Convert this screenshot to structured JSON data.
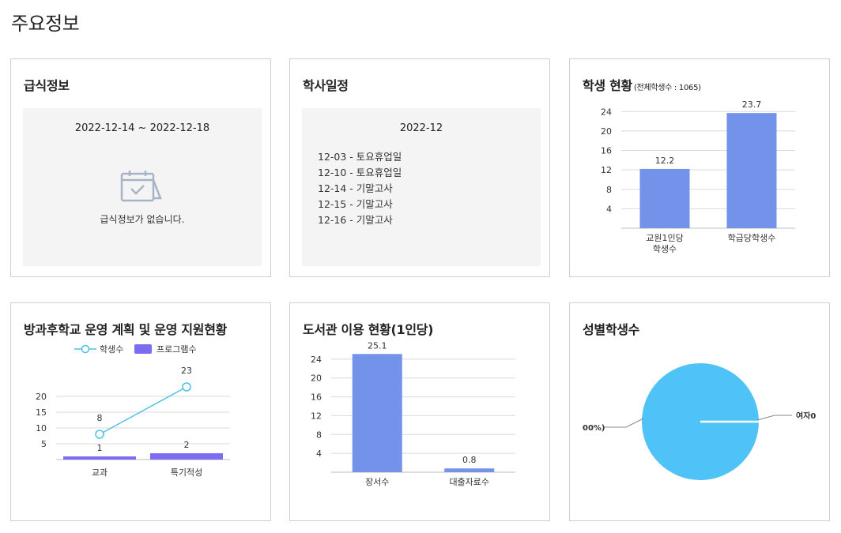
{
  "page_title": "주요정보",
  "meal": {
    "title": "급식정보",
    "date_range": "2022-12-14 ~ 2022-12-18",
    "empty_message": "급식정보가 없습니다."
  },
  "schedule": {
    "title": "학사일정",
    "month": "2022-12",
    "items": [
      {
        "date": "12-03",
        "event": "토요휴업일"
      },
      {
        "date": "12-10",
        "event": "토요휴업일"
      },
      {
        "date": "12-14",
        "event": "기말고사"
      },
      {
        "date": "12-15",
        "event": "기말고사"
      },
      {
        "date": "12-16",
        "event": "기말고사"
      }
    ]
  },
  "student_status": {
    "title": "학생 현황",
    "subtitle": "(전체학생수 : 1065)"
  },
  "afterschool": {
    "title": "방과후학교 운영 계획 및 운영 지원현황"
  },
  "library": {
    "title": "도서관 이용 현황(1인당)"
  },
  "gender": {
    "title": "성별학생수"
  },
  "colors": {
    "bar": "#7393ea",
    "line": "#4fc0e8",
    "program_bar": "#7b6cf0",
    "pie": "#4fc3f7"
  },
  "chart_data": [
    {
      "id": "student-status",
      "type": "bar",
      "categories": [
        "교원1인당\n학생수",
        "학급당학생수"
      ],
      "values": [
        12.2,
        23.7
      ],
      "ylim": [
        0,
        26
      ],
      "yticks": [
        4,
        8,
        12,
        16,
        20,
        24
      ],
      "grid": true
    },
    {
      "id": "afterschool",
      "type": "bar",
      "categories": [
        "교과",
        "특기적성"
      ],
      "series": [
        {
          "name": "학생수",
          "kind": "line",
          "values": [
            8,
            23
          ]
        },
        {
          "name": "프로그램수",
          "kind": "bar",
          "values": [
            1,
            2
          ]
        }
      ],
      "ylim": [
        0,
        25
      ],
      "yticks": [
        5,
        10,
        15,
        20
      ],
      "legend": "top",
      "grid": true
    },
    {
      "id": "library",
      "type": "bar",
      "categories": [
        "장서수",
        "대출자료수"
      ],
      "values": [
        25.1,
        0.8
      ],
      "ylim": [
        0,
        27.5
      ],
      "yticks": [
        4,
        8,
        12,
        16,
        20,
        24
      ],
      "grid": true
    },
    {
      "id": "gender",
      "type": "pie",
      "slices": [
        {
          "label": "여자0",
          "value": 0
        },
        {
          "label": "00%)",
          "value": 100
        }
      ]
    }
  ]
}
